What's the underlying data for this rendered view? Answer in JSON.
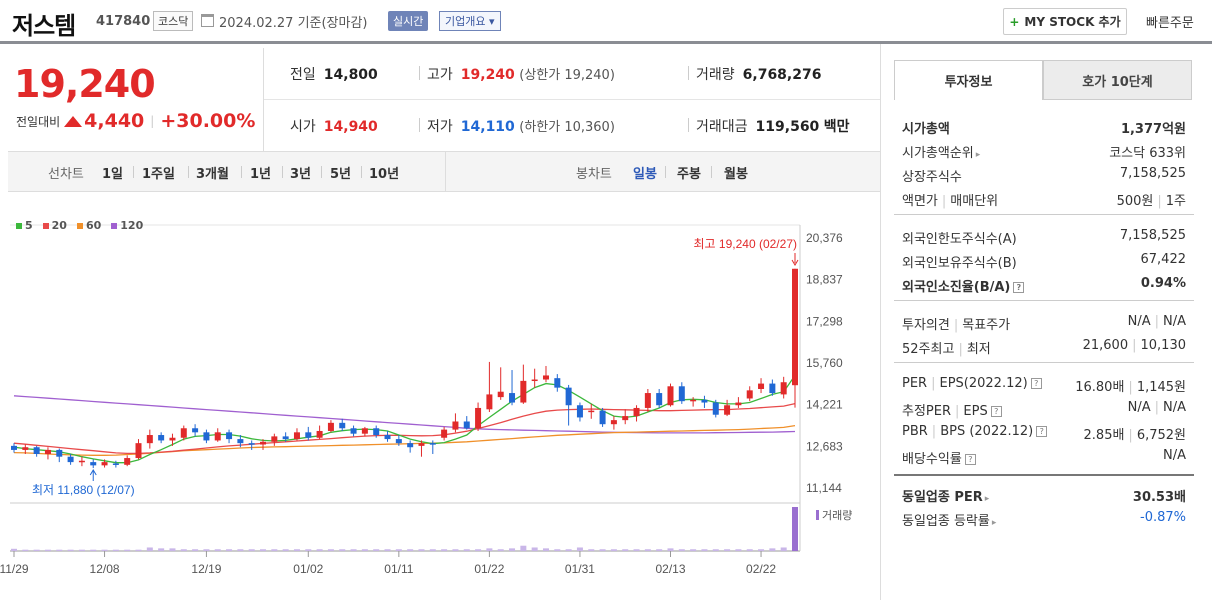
{
  "header": {
    "name": "저스템",
    "code": "417840",
    "market": "코스닥",
    "date": "2024.02.27 기준(장마감)",
    "realtime": "실시간",
    "company_info": "기업개요 ▾",
    "mystock": "MY STOCK 추가",
    "quick_order": "빠른주문"
  },
  "price": {
    "current": "19,240",
    "change_label": "전일대비",
    "change_amount": "4,440",
    "change_pct": "+30.00%"
  },
  "price_grid": {
    "prev_close_label": "전일",
    "prev_close": "14,800",
    "high_label": "고가",
    "high": "19,240",
    "upper_limit": "(상한가 19,240)",
    "volume_label": "거래량",
    "volume": "6,768,276",
    "open_label": "시가",
    "open": "14,940",
    "low_label": "저가",
    "low": "14,110",
    "lower_limit": "(하한가 10,360)",
    "amount_label": "거래대금",
    "amount": "119,560",
    "amount_unit": "백만"
  },
  "tabs": {
    "line_label": "선차트",
    "line_items": [
      "1일",
      "1주일",
      "3개월",
      "1년",
      "3년",
      "5년",
      "10년"
    ],
    "candle_label": "봉차트",
    "candle_items": [
      "일봉",
      "주봉",
      "월봉"
    ]
  },
  "colors": {
    "up": "#e12a2a",
    "down": "#2068d4",
    "ma5": "#3cb83c",
    "ma20": "#e84a4a",
    "ma60": "#f0902a",
    "ma120": "#a060d0"
  },
  "chart_data": {
    "type": "candlestick",
    "legend": [
      "5",
      "20",
      "60",
      "120"
    ],
    "y_ticks": [
      "20,376",
      "18,837",
      "17,298",
      "15,760",
      "14,221",
      "12,683",
      "11,144"
    ],
    "x_ticks": [
      "11/29",
      "12/08",
      "12/19",
      "01/02",
      "01/11",
      "01/22",
      "01/31",
      "02/13",
      "02/22"
    ],
    "ylim": [
      11144,
      20376
    ],
    "max_annotation": "최고 19,240 (02/27)",
    "min_annotation": "최저 11,880 (12/07)",
    "volume_label": "거래량",
    "candles": [
      {
        "o": 12700,
        "c": 12550,
        "h": 12800,
        "l": 12450
      },
      {
        "o": 12550,
        "c": 12650,
        "h": 12750,
        "l": 12400
      },
      {
        "o": 12650,
        "c": 12400,
        "h": 12700,
        "l": 12300
      },
      {
        "o": 12400,
        "c": 12550,
        "h": 12650,
        "l": 12200
      },
      {
        "o": 12550,
        "c": 12300,
        "h": 12600,
        "l": 12100
      },
      {
        "o": 12300,
        "c": 12100,
        "h": 12400,
        "l": 12000
      },
      {
        "o": 12100,
        "c": 12150,
        "h": 12300,
        "l": 11950
      },
      {
        "o": 12100,
        "c": 11980,
        "h": 12200,
        "l": 11880
      },
      {
        "o": 11980,
        "c": 12100,
        "h": 12200,
        "l": 11900
      },
      {
        "o": 12050,
        "c": 12000,
        "h": 12150,
        "l": 11900
      },
      {
        "o": 12000,
        "c": 12250,
        "h": 12350,
        "l": 11950
      },
      {
        "o": 12250,
        "c": 12800,
        "h": 12950,
        "l": 12200
      },
      {
        "o": 12800,
        "c": 13100,
        "h": 13300,
        "l": 12600
      },
      {
        "o": 13100,
        "c": 12900,
        "h": 13200,
        "l": 12800
      },
      {
        "o": 12900,
        "c": 13000,
        "h": 13150,
        "l": 12700
      },
      {
        "o": 13000,
        "c": 13350,
        "h": 13450,
        "l": 12900
      },
      {
        "o": 13350,
        "c": 13200,
        "h": 13500,
        "l": 13050
      },
      {
        "o": 13200,
        "c": 12900,
        "h": 13300,
        "l": 12800
      },
      {
        "o": 12900,
        "c": 13200,
        "h": 13350,
        "l": 12850
      },
      {
        "o": 13200,
        "c": 12950,
        "h": 13300,
        "l": 12800
      },
      {
        "o": 12950,
        "c": 12800,
        "h": 13100,
        "l": 12650
      },
      {
        "o": 12800,
        "c": 12750,
        "h": 12900,
        "l": 12550
      },
      {
        "o": 12750,
        "c": 12850,
        "h": 12950,
        "l": 12550
      },
      {
        "o": 12850,
        "c": 13050,
        "h": 13150,
        "l": 12700
      },
      {
        "o": 13050,
        "c": 12950,
        "h": 13200,
        "l": 12850
      },
      {
        "o": 12950,
        "c": 13200,
        "h": 13350,
        "l": 12900
      },
      {
        "o": 13200,
        "c": 13000,
        "h": 13400,
        "l": 12900
      },
      {
        "o": 13000,
        "c": 13250,
        "h": 13450,
        "l": 12950
      },
      {
        "o": 13250,
        "c": 13550,
        "h": 13650,
        "l": 13200
      },
      {
        "o": 13550,
        "c": 13350,
        "h": 13700,
        "l": 13250
      },
      {
        "o": 13350,
        "c": 13150,
        "h": 13450,
        "l": 13050
      },
      {
        "o": 13150,
        "c": 13350,
        "h": 13400,
        "l": 13050
      },
      {
        "o": 13350,
        "c": 13100,
        "h": 13450,
        "l": 13000
      },
      {
        "o": 13100,
        "c": 12950,
        "h": 13250,
        "l": 12850
      },
      {
        "o": 12950,
        "c": 12800,
        "h": 13100,
        "l": 12700
      },
      {
        "o": 12800,
        "c": 12650,
        "h": 12900,
        "l": 12450
      },
      {
        "o": 12700,
        "c": 12800,
        "h": 12900,
        "l": 12300
      },
      {
        "o": 12800,
        "c": 12750,
        "h": 12900,
        "l": 12400
      },
      {
        "o": 13000,
        "c": 13300,
        "h": 13400,
        "l": 12900
      },
      {
        "o": 13300,
        "c": 13600,
        "h": 13900,
        "l": 13200
      },
      {
        "o": 13600,
        "c": 13350,
        "h": 13800,
        "l": 13300
      },
      {
        "o": 13350,
        "c": 14100,
        "h": 14300,
        "l": 13250
      },
      {
        "o": 14050,
        "c": 14600,
        "h": 15800,
        "l": 13950
      },
      {
        "o": 14500,
        "c": 14700,
        "h": 15600,
        "l": 14400
      },
      {
        "o": 14650,
        "c": 14300,
        "h": 15500,
        "l": 14200
      },
      {
        "o": 14300,
        "c": 15100,
        "h": 15700,
        "l": 14250
      },
      {
        "o": 15100,
        "c": 15150,
        "h": 15550,
        "l": 14850
      },
      {
        "o": 15150,
        "c": 15300,
        "h": 15650,
        "l": 15050
      },
      {
        "o": 15200,
        "c": 14850,
        "h": 15350,
        "l": 14700
      },
      {
        "o": 14850,
        "c": 14200,
        "h": 14950,
        "l": 13450
      },
      {
        "o": 14200,
        "c": 13750,
        "h": 14300,
        "l": 13600
      },
      {
        "o": 13950,
        "c": 14000,
        "h": 14250,
        "l": 13700
      },
      {
        "o": 14000,
        "c": 13500,
        "h": 14100,
        "l": 13400
      },
      {
        "o": 13500,
        "c": 13650,
        "h": 13800,
        "l": 13300
      },
      {
        "o": 13650,
        "c": 13800,
        "h": 14050,
        "l": 13500
      },
      {
        "o": 13800,
        "c": 14100,
        "h": 14200,
        "l": 13600
      },
      {
        "o": 14100,
        "c": 14650,
        "h": 14800,
        "l": 13950
      },
      {
        "o": 14650,
        "c": 14200,
        "h": 14800,
        "l": 14100
      },
      {
        "o": 14200,
        "c": 14900,
        "h": 15000,
        "l": 14150
      },
      {
        "o": 14900,
        "c": 14350,
        "h": 15050,
        "l": 14250
      },
      {
        "o": 14350,
        "c": 14400,
        "h": 14500,
        "l": 14150
      },
      {
        "o": 14400,
        "c": 14300,
        "h": 14550,
        "l": 14100
      },
      {
        "o": 14300,
        "c": 13850,
        "h": 14400,
        "l": 13750
      },
      {
        "o": 13850,
        "c": 14200,
        "h": 14400,
        "l": 13800
      },
      {
        "o": 14200,
        "c": 14300,
        "h": 14500,
        "l": 14100
      },
      {
        "o": 14450,
        "c": 14750,
        "h": 14900,
        "l": 14350
      },
      {
        "o": 14800,
        "c": 15000,
        "h": 15200,
        "l": 14650
      },
      {
        "o": 15000,
        "c": 14650,
        "h": 15150,
        "l": 14550
      },
      {
        "o": 14600,
        "c": 15050,
        "h": 15250,
        "l": 14450
      },
      {
        "o": 14940,
        "c": 19240,
        "h": 19240,
        "l": 14110
      }
    ],
    "ma5": [
      12650,
      12600,
      12560,
      12520,
      12480,
      12400,
      12300,
      12220,
      12150,
      12080,
      12080,
      12180,
      12380,
      12560,
      12750,
      12950,
      13050,
      13080,
      13120,
      13120,
      13060,
      12960,
      12900,
      12880,
      12900,
      12960,
      13020,
      13070,
      13200,
      13260,
      13300,
      13320,
      13300,
      13250,
      13100,
      12950,
      12850,
      12780,
      12820,
      12950,
      13100,
      13450,
      13750,
      14050,
      14350,
      14600,
      14850,
      15000,
      14950,
      14750,
      14500,
      14250,
      14000,
      13800,
      13750,
      13800,
      13950,
      14100,
      14300,
      14400,
      14420,
      14400,
      14300,
      14250,
      14250,
      14300,
      14450,
      14600,
      14700,
      15300
    ],
    "ma20": [
      12800,
      12760,
      12720,
      12680,
      12640,
      12600,
      12560,
      12520,
      12480,
      12440,
      12420,
      12420,
      12440,
      12470,
      12500,
      12540,
      12580,
      12620,
      12660,
      12700,
      12730,
      12760,
      12790,
      12820,
      12850,
      12880,
      12910,
      12940,
      12970,
      13000,
      13030,
      13060,
      13080,
      13090,
      13090,
      13080,
      13070,
      13080,
      13110,
      13170,
      13240,
      13340,
      13450,
      13560,
      13680,
      13800,
      13900,
      13980,
      14020,
      14040,
      14050,
      14060,
      14050,
      14040,
      14030,
      14020,
      14010,
      14000,
      14000,
      14010,
      14020,
      14030,
      14040,
      14040,
      14060,
      14080,
      14110,
      14140,
      14170,
      14260
    ],
    "ma60": [
      12450,
      12440,
      12420,
      12400,
      12380,
      12370,
      12360,
      12350,
      12350,
      12360,
      12380,
      12400,
      12430,
      12460,
      12490,
      12520,
      12540,
      12560,
      12580,
      12600,
      12620,
      12640,
      12650,
      12660,
      12670,
      12680,
      12690,
      12700,
      12710,
      12720,
      12730,
      12740,
      12750,
      12760,
      12770,
      12780,
      12790,
      12800,
      12810,
      12830,
      12850,
      12880,
      12910,
      12940,
      12970,
      13000,
      13030,
      13060,
      13090,
      13110,
      13130,
      13150,
      13170,
      13190,
      13200,
      13210,
      13220,
      13230,
      13240,
      13250,
      13260,
      13270,
      13280,
      13290,
      13300,
      13320,
      13340,
      13360,
      13380,
      13450
    ],
    "ma120": [
      14550,
      14520,
      14490,
      14460,
      14430,
      14400,
      14370,
      14340,
      14310,
      14280,
      14250,
      14220,
      14190,
      14160,
      14130,
      14100,
      14070,
      14040,
      14010,
      13980,
      13950,
      13920,
      13890,
      13860,
      13830,
      13800,
      13770,
      13740,
      13710,
      13680,
      13650,
      13620,
      13590,
      13560,
      13530,
      13500,
      13470,
      13440,
      13410,
      13380,
      13350,
      13330,
      13310,
      13300,
      13290,
      13280,
      13270,
      13260,
      13250,
      13240,
      13230,
      13220,
      13210,
      13200,
      13195,
      13190,
      13185,
      13180,
      13180,
      13180,
      13180,
      13180,
      13185,
      13190,
      13195,
      13200,
      13205,
      13210,
      13220,
      13230
    ],
    "volumes": [
      5,
      3,
      3,
      3,
      3,
      3,
      3,
      3,
      3,
      3,
      3,
      3,
      8,
      6,
      6,
      4,
      4,
      4,
      4,
      4,
      4,
      4,
      4,
      4,
      4,
      4,
      4,
      4,
      4,
      4,
      4,
      4,
      4,
      4,
      4,
      4,
      4,
      4,
      4,
      4,
      4,
      4,
      6,
      4,
      6,
      12,
      8,
      6,
      4,
      4,
      8,
      4,
      4,
      4,
      4,
      4,
      4,
      4,
      6,
      4,
      4,
      4,
      4,
      4,
      4,
      4,
      4,
      6,
      8,
      100
    ]
  },
  "side": {
    "tab_active": "투자정보",
    "tab_inactive": "호가 10단계",
    "rows1": [
      {
        "label": "시가총액",
        "value": "1,377억원",
        "bold": true
      },
      {
        "label": "시가총액순위",
        "value": "코스닥 633위",
        "arrow": true
      },
      {
        "label": "상장주식수",
        "value": "7,158,525"
      },
      {
        "label": "액면가",
        "label2": "매매단위",
        "value": "500원",
        "value2": "1주"
      }
    ],
    "rows2": [
      {
        "label": "외국인한도주식수(A)",
        "value": "7,158,525"
      },
      {
        "label": "외국인보유주식수(B)",
        "value": "67,422"
      },
      {
        "label": "외국인소진율(B/A)",
        "value": "0.94%",
        "bold": true,
        "q": true
      }
    ],
    "rows3": [
      {
        "label": "투자의견",
        "label2": "목표주가",
        "value": "N/A",
        "value2": "N/A"
      },
      {
        "label": "52주최고",
        "label2": "최저",
        "value": "21,600",
        "value2": "10,130"
      }
    ],
    "rows4": [
      {
        "label": "PER",
        "label2": "EPS(2022.12)",
        "value": "16.80배",
        "value2": "1,145원",
        "q": true
      },
      {
        "label": "추정PER",
        "label2": "EPS",
        "value": "N/A",
        "value2": "N/A",
        "q": true
      },
      {
        "label": "PBR",
        "label2": "BPS (2022.12)",
        "value": "2.85배",
        "value2": "6,752원",
        "q": true
      },
      {
        "label": "배당수익률",
        "value": "N/A",
        "q": true
      }
    ],
    "rows5": [
      {
        "label": "동일업종 PER",
        "value": "30.53배",
        "bold": true,
        "arrow": true
      },
      {
        "label": "동일업종 등락률",
        "value": "-0.87%",
        "blue": true,
        "arrow": true
      }
    ]
  }
}
